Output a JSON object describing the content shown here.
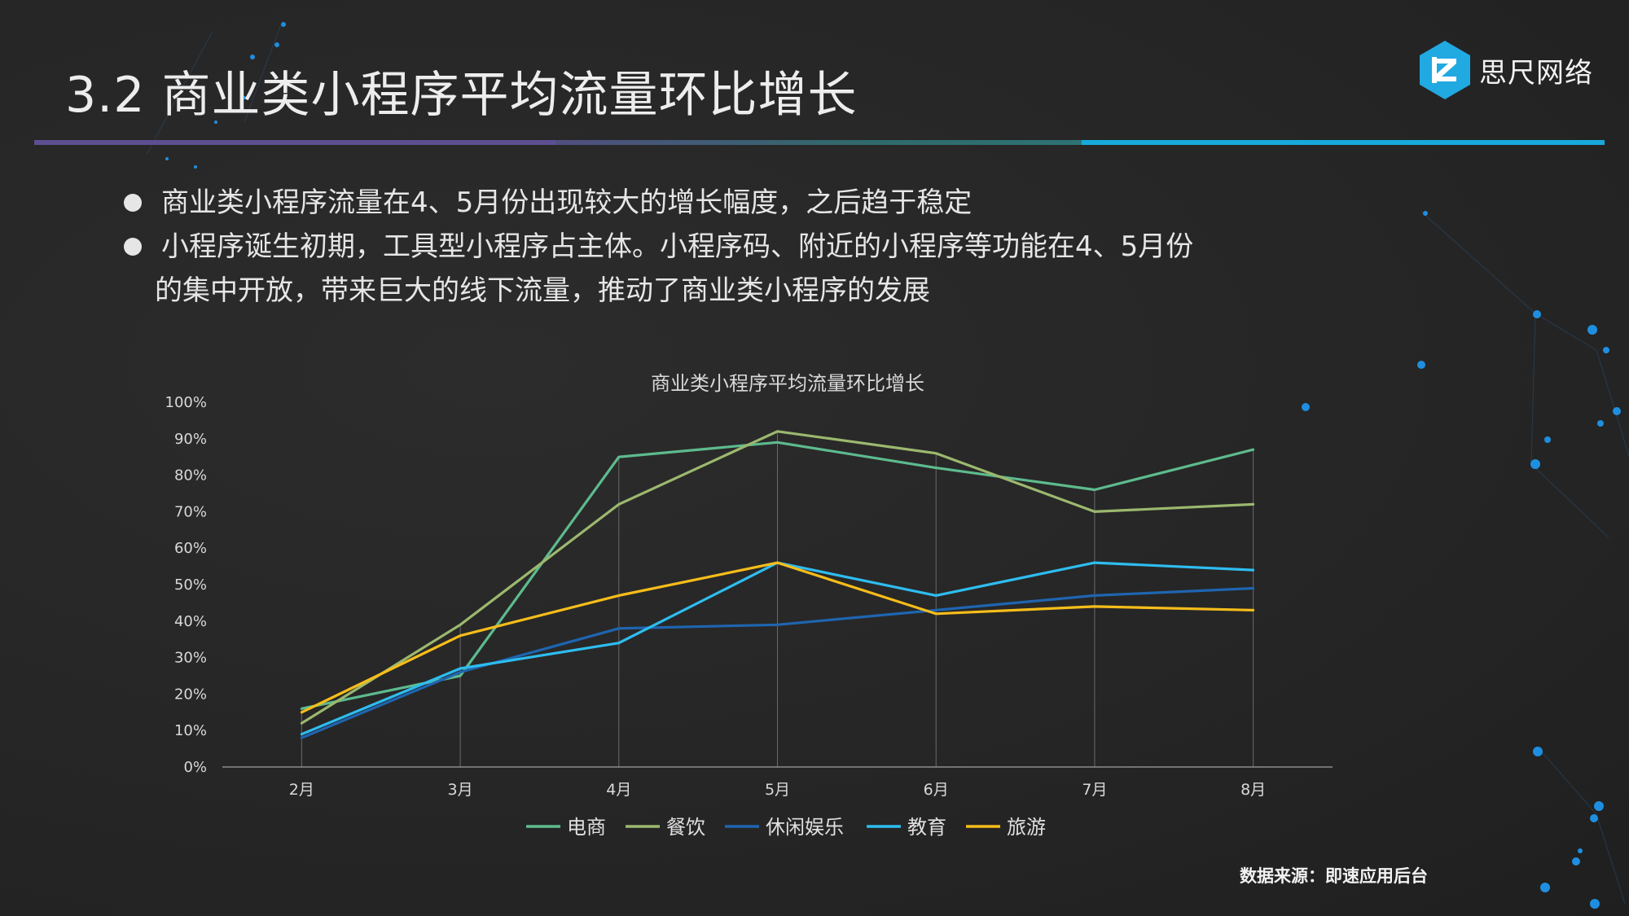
{
  "header": {
    "title": "3.2 商业类小程序平均流量环比增长",
    "brand": "思尺网络"
  },
  "bullets": [
    {
      "lines": [
        "商业类小程序流量在4、5月份出现较大的增长幅度，之后趋于稳定"
      ]
    },
    {
      "lines": [
        "小程序诞生初期，工具型小程序占主体。小程序码、附近的小程序等功能在4、5月份",
        "的集中开放，带来巨大的线下流量，推动了商业类小程序的发展"
      ]
    }
  ],
  "source": "数据来源：即速应用后台",
  "chart_data": {
    "type": "line",
    "title": "商业类小程序平均流量环比增长",
    "categories": [
      "2月",
      "3月",
      "4月",
      "5月",
      "6月",
      "7月",
      "8月"
    ],
    "ylim": [
      0,
      100
    ],
    "yticks": [
      "0%",
      "10%",
      "20%",
      "30%",
      "40%",
      "50%",
      "60%",
      "70%",
      "80%",
      "90%",
      "100%"
    ],
    "xlabel": "",
    "ylabel": "",
    "legend_position": "bottom",
    "series": [
      {
        "name": "电商",
        "color": "#5dbb8e",
        "values": [
          16,
          25,
          85,
          89,
          82,
          76,
          87
        ]
      },
      {
        "name": "餐饮",
        "color": "#9cb86e",
        "values": [
          12,
          39,
          72,
          92,
          86,
          70,
          72
        ]
      },
      {
        "name": "休闲娱乐",
        "color": "#1e65b0",
        "values": [
          8,
          26,
          38,
          39,
          43,
          47,
          49
        ]
      },
      {
        "name": "教育",
        "color": "#2ebdf0",
        "values": [
          9,
          27,
          34,
          56,
          47,
          56,
          54
        ]
      },
      {
        "name": "旅游",
        "color": "#f6bd1a",
        "values": [
          15,
          36,
          47,
          56,
          42,
          44,
          43
        ]
      }
    ]
  }
}
